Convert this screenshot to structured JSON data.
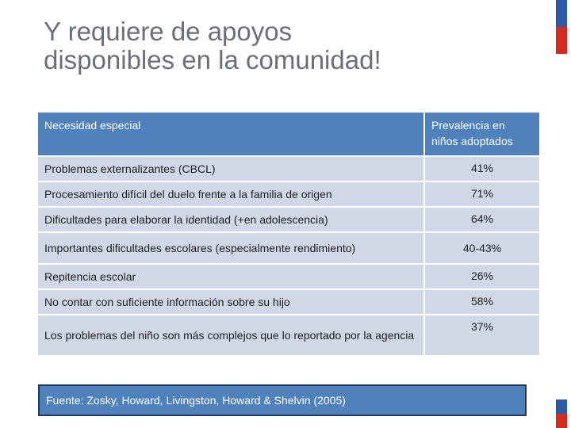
{
  "title": "Y requiere de apoyos disponibles en la comunidad!",
  "table": {
    "headers": [
      "Necesidad especial",
      "Prevalencia en niños adoptados"
    ],
    "rows": [
      {
        "need": "Problemas externalizantes (CBCL)",
        "prevalence": "41%"
      },
      {
        "need": "Procesamiento difícil del duelo frente a la familia de origen",
        "prevalence": "71%"
      },
      {
        "need": "Dificultades para elaborar la identidad (+en adolescencia)",
        "prevalence": "64%"
      },
      {
        "need": "Importantes dificultades escolares (especialmente rendimiento)",
        "prevalence": "40-43%"
      },
      {
        "need": "Repitencia escolar",
        "prevalence": "26%"
      },
      {
        "need": "No contar con suficiente información sobre su hijo",
        "prevalence": "58%"
      },
      {
        "need": "Los problemas del niño son más complejos que lo reportado por la agencia",
        "prevalence": "37%"
      }
    ]
  },
  "source": "Fuente: Zosky, Howard, Livingston, Howard & Shelvin (2005)",
  "colors": {
    "header": "#4f81bd",
    "row": "#d0d8e8",
    "flag_blue": "#2a5aa8",
    "flag_red": "#d52b1e"
  }
}
